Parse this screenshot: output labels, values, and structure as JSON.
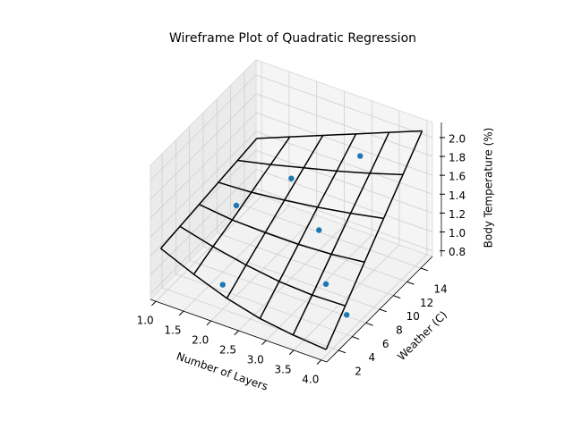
{
  "chart_data": {
    "type": "wireframe",
    "title": "Wireframe Plot of Quadratic Regression",
    "xlabel": "Number of Layers",
    "ylabel": "Weather (C)",
    "zlabel": "Body Temperature (%)",
    "x": [
      1.0,
      1.6,
      2.2,
      2.8,
      3.4,
      4.0
    ],
    "y": [
      1.0,
      3.8,
      6.6,
      9.4,
      12.2,
      15.0
    ],
    "z": [
      [
        1.25,
        1.1,
        0.97,
        0.88,
        0.83,
        0.8
      ],
      [
        1.28,
        1.19,
        1.12,
        1.07,
        1.05,
        1.06
      ],
      [
        1.31,
        1.27,
        1.26,
        1.26,
        1.28,
        1.32
      ],
      [
        1.34,
        1.36,
        1.4,
        1.45,
        1.51,
        1.58
      ],
      [
        1.37,
        1.45,
        1.54,
        1.63,
        1.73,
        1.84
      ],
      [
        1.4,
        1.54,
        1.68,
        1.82,
        1.96,
        2.1
      ]
    ],
    "color": "#000000",
    "scatter": {
      "x": [
        1.5,
        2.0,
        3.0,
        3.0,
        3.5,
        2.0,
        4.0
      ],
      "y": [
        8,
        12,
        14,
        8,
        5,
        2,
        4
      ],
      "z": [
        1.3,
        1.4,
        1.7,
        1.35,
        1.1,
        1.0,
        0.95
      ],
      "color": "#1f77b4"
    },
    "xlim": [
      0.9,
      4.1
    ],
    "ylim": [
      0.3,
      15.7
    ],
    "zlim": [
      0.74,
      2.16
    ],
    "xticks": [
      {
        "value": 1.0,
        "label": "1.0"
      },
      1.5,
      {
        "value": 2.0,
        "label": "2.0"
      },
      2.5,
      {
        "value": 3.0,
        "label": "3.0"
      },
      3.5,
      {
        "value": 4.0,
        "label": "4.0"
      }
    ],
    "yticks": [
      2,
      4,
      6,
      8,
      10,
      12,
      14
    ],
    "zticks": [
      0.8,
      {
        "value": 1.0,
        "label": "1.0"
      },
      1.2,
      1.4,
      1.6,
      1.8,
      {
        "value": 2.0,
        "label": "2.0"
      }
    ],
    "grid": true
  }
}
